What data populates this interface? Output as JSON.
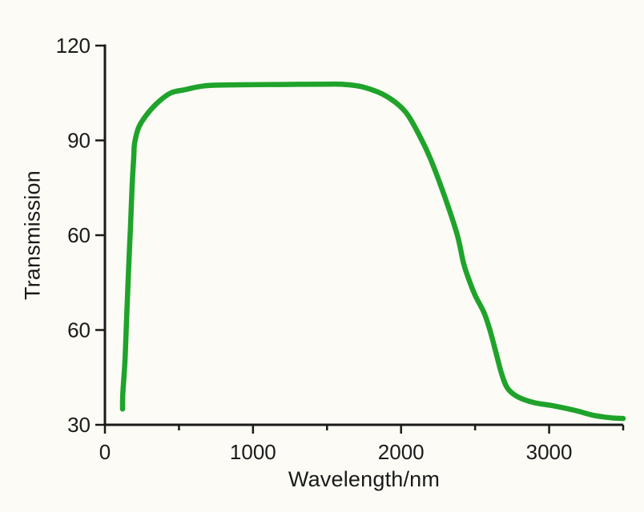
{
  "figure": {
    "background": "#fcfbf5",
    "text_color": "#1a1a1a",
    "axis_color": "#1a1a1a"
  },
  "chart_data": {
    "type": "line",
    "title": "",
    "xlabel": "Wavelength/nm",
    "ylabel": "Transmission",
    "grid": false,
    "legend": false,
    "x_range": [
      0,
      3500
    ],
    "x_ticks": [
      0,
      1000,
      2000,
      3000
    ],
    "x_tick_labels": [
      "0",
      "1000",
      "2000",
      "3000"
    ],
    "x_minor_ticks": [
      500,
      1500,
      2500,
      3500
    ],
    "y_tick_labels_top_to_bottom": [
      "120",
      "90",
      "60",
      "60",
      "30"
    ],
    "y_axis_note": "tick labels as printed in the source image; the 3rd and 4th ticks both read 60",
    "y_render_range": [
      0,
      120
    ],
    "series": [
      {
        "name": "transmission-curve",
        "color": "#1fa32b",
        "stroke_width": 6.5,
        "points": [
          [
            119,
            5
          ],
          [
            121,
            10
          ],
          [
            135,
            20
          ],
          [
            146,
            33
          ],
          [
            157,
            46
          ],
          [
            168,
            58
          ],
          [
            173,
            63
          ],
          [
            184,
            76
          ],
          [
            195,
            85
          ],
          [
            200,
            89
          ],
          [
            227,
            94
          ],
          [
            280,
            98
          ],
          [
            357,
            102
          ],
          [
            444,
            105
          ],
          [
            535,
            106
          ],
          [
            680,
            107.3
          ],
          [
            900,
            107.6
          ],
          [
            1200,
            107.7
          ],
          [
            1500,
            107.8
          ],
          [
            1620,
            107.7
          ],
          [
            1750,
            106.8
          ],
          [
            1900,
            104
          ],
          [
            2030,
            99
          ],
          [
            2130,
            91
          ],
          [
            2200,
            84
          ],
          [
            2300,
            71.5
          ],
          [
            2380,
            60
          ],
          [
            2420,
            51.5
          ],
          [
            2450,
            47
          ],
          [
            2500,
            41
          ],
          [
            2560,
            35.5
          ],
          [
            2600,
            30
          ],
          [
            2640,
            23
          ],
          [
            2680,
            16
          ],
          [
            2720,
            11.5
          ],
          [
            2790,
            8.8
          ],
          [
            2900,
            7
          ],
          [
            3030,
            6
          ],
          [
            3180,
            4.5
          ],
          [
            3300,
            3
          ],
          [
            3420,
            2.2
          ],
          [
            3500,
            2
          ]
        ]
      }
    ]
  }
}
